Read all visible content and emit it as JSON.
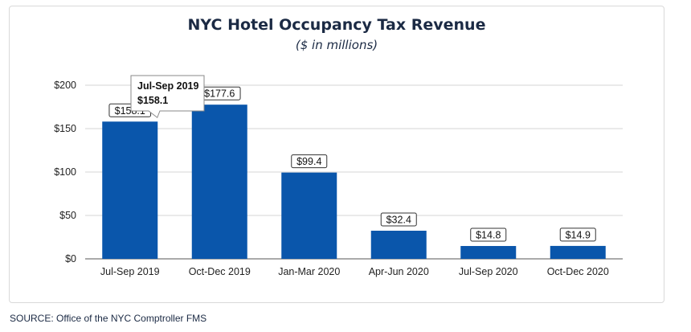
{
  "chart_data": {
    "type": "bar",
    "title": "NYC Hotel Occupancy Tax Revenue",
    "subtitle": "($ in millions)",
    "categories": [
      "Jul-Sep 2019",
      "Oct-Dec 2019",
      "Jan-Mar 2020",
      "Apr-Jun 2020",
      "Jul-Sep 2020",
      "Oct-Dec 2020"
    ],
    "values": [
      158.1,
      177.6,
      99.4,
      32.4,
      14.8,
      14.9
    ],
    "data_labels": [
      "$158.1",
      "$177.6",
      "$99.4",
      "$32.4",
      "$14.8",
      "$14.9"
    ],
    "y_ticks": [
      0,
      50,
      100,
      150,
      200
    ],
    "y_tick_labels": [
      "$0",
      "$50",
      "$100",
      "$150",
      "$200"
    ],
    "ylim": [
      0,
      200
    ],
    "grid": true,
    "bar_color": "#0a56ab",
    "tooltip": {
      "category": "Jul-Sep 2019",
      "value": "$158.1"
    }
  },
  "source": "SOURCE: Office of the NYC Comptroller FMS"
}
